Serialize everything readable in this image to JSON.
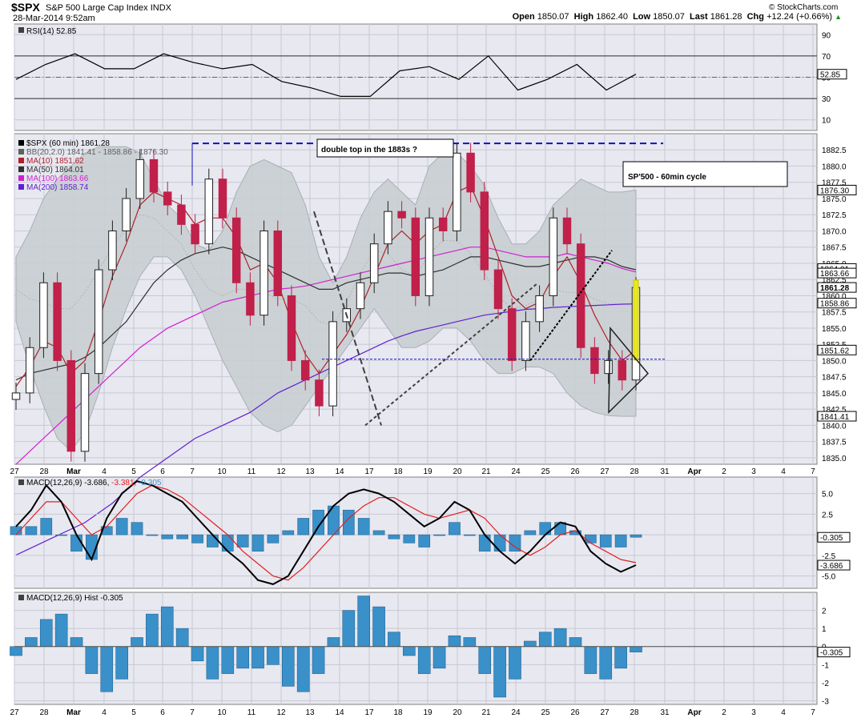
{
  "header": {
    "symbol": "$SPX",
    "name": "S&P 500 Large Cap Index",
    "exchange": "INDX",
    "timestamp": "28-Mar-2014 9:52am",
    "brand": "© StockCharts.com",
    "open_label": "Open",
    "open": "1850.07",
    "high_label": "High",
    "high": "1862.40",
    "low_label": "Low",
    "low": "1850.07",
    "last_label": "Last",
    "last": "1861.28",
    "chg_label": "Chg",
    "chg": "+12.24 (+0.66%)",
    "chg_icon": "triangle-up-icon"
  },
  "colors": {
    "panel_bg": "#e8e8f0",
    "bb_fill": "#c8ced0",
    "up": "#202020",
    "down": "#c0204a",
    "ma10": "#b0202a",
    "ma50": "#303030",
    "ma100": "#d020d0",
    "ma200": "#6020d0",
    "macd_hist": "#3a90c8",
    "signal": "#e02020",
    "marker": "#e8e820"
  },
  "chart_data": [
    {
      "type": "line",
      "panel": "rsi",
      "legend": "RSI(14) 52.85",
      "ylim": [
        0,
        100
      ],
      "yticks": [
        10,
        30,
        50,
        70,
        90
      ],
      "reference_lines": [
        30,
        70
      ],
      "last_value": "52.85",
      "x": [
        "Feb 27",
        "Feb 28",
        "Mar 3",
        "Mar 4",
        "Mar 5",
        "Mar 6",
        "Mar 7",
        "Mar 10",
        "Mar 11",
        "Mar 12",
        "Mar 13",
        "Mar 14",
        "Mar 17",
        "Mar 18",
        "Mar 19",
        "Mar 20",
        "Mar 21",
        "Mar 24",
        "Mar 25",
        "Mar 26",
        "Mar 27",
        "Mar 28"
      ],
      "values": [
        48,
        62,
        72,
        58,
        58,
        72,
        64,
        58,
        62,
        46,
        40,
        32,
        32,
        56,
        60,
        48,
        70,
        38,
        48,
        62,
        38,
        52.85
      ]
    },
    {
      "type": "candlestick",
      "panel": "price",
      "legend": [
        {
          "name": "$SPX (60 min) 1861.28",
          "icon": "candle-icon"
        },
        {
          "name": "BB(20,2.0) 1841.41 - 1858.86 - 1876.30",
          "icon": "bb-icon"
        },
        {
          "name": "MA(10) 1851.62",
          "icon": "line-icon"
        },
        {
          "name": "MA(50) 1864.01",
          "icon": "line-icon"
        },
        {
          "name": "MA(100) 1863.66",
          "icon": "line-icon"
        },
        {
          "name": "MA(200) 1858.74",
          "icon": "line-icon"
        }
      ],
      "ylim": [
        1834,
        1885
      ],
      "yticks": [
        "1835.0",
        "1837.5",
        "1840.0",
        "1842.5",
        "1845.0",
        "1847.5",
        "1850.0",
        "1852.5",
        "1855.0",
        "1857.5",
        "1860.0",
        "1862.5",
        "1865.0",
        "1867.5",
        "1870.0",
        "1872.5",
        "1875.0",
        "1877.5",
        "1880.0",
        "1882.5"
      ],
      "value_tags": [
        {
          "value": "1876.30",
          "y": 1876.3
        },
        {
          "value": "1864.01",
          "y": 1864.2
        },
        {
          "value": "1863.66",
          "y": 1863.5
        },
        {
          "value": "1861.28",
          "y": 1861.28
        },
        {
          "value": "1858.86",
          "y": 1858.86
        },
        {
          "value": "1851.62",
          "y": 1851.62
        },
        {
          "value": "1841.41",
          "y": 1841.41
        }
      ],
      "closes": [
        1845,
        1852,
        1862,
        1850,
        1836,
        1848,
        1864,
        1870,
        1875,
        1881,
        1876,
        1874,
        1871,
        1868,
        1878,
        1872,
        1862,
        1857,
        1870,
        1860,
        1850,
        1847,
        1843,
        1856,
        1858,
        1862,
        1868,
        1873,
        1872,
        1860,
        1872,
        1870,
        1882,
        1876,
        1864,
        1858,
        1850,
        1856,
        1860,
        1872,
        1868,
        1852,
        1848,
        1850,
        1847,
        1861.28
      ],
      "bb_upper": [
        1866,
        1870,
        1875,
        1878,
        1880,
        1882,
        1883,
        1883,
        1883,
        1882,
        1878,
        1874,
        1872,
        1868,
        1867,
        1870,
        1876,
        1880,
        1881,
        1880,
        1879,
        1874,
        1866,
        1862,
        1866,
        1872,
        1876,
        1878,
        1876,
        1874,
        1880,
        1882,
        1882,
        1880,
        1877,
        1872,
        1868,
        1868,
        1870,
        1874,
        1876,
        1878,
        1877,
        1876,
        1876,
        1876.3
      ],
      "bb_lower": [
        1856,
        1849,
        1843,
        1838,
        1836,
        1839,
        1845,
        1852,
        1858,
        1863,
        1866,
        1866,
        1864,
        1860,
        1855,
        1850,
        1846,
        1842,
        1840,
        1839,
        1840,
        1843,
        1846,
        1849,
        1852,
        1855,
        1858,
        1855,
        1852,
        1852,
        1853,
        1855,
        1855,
        1853,
        1850,
        1848,
        1848,
        1849,
        1849,
        1848,
        1845,
        1843,
        1842,
        1841.5,
        1841.4,
        1841.41
      ],
      "ma10": [
        1846,
        1849,
        1853,
        1852,
        1848,
        1850,
        1856,
        1863,
        1868,
        1874,
        1876,
        1875,
        1874,
        1871,
        1872,
        1872,
        1869,
        1864,
        1865,
        1862,
        1856,
        1851,
        1848,
        1851,
        1854,
        1858,
        1863,
        1868,
        1870,
        1868,
        1870,
        1871,
        1876,
        1877,
        1872,
        1866,
        1860,
        1858,
        1859,
        1863,
        1866,
        1862,
        1857,
        1853,
        1850,
        1851.62
      ],
      "ma50": [
        1847,
        1848,
        1848.5,
        1849,
        1849.5,
        1850.5,
        1852,
        1854,
        1856,
        1859,
        1862,
        1864,
        1865.5,
        1866.5,
        1867,
        1867.5,
        1867,
        1866,
        1865,
        1864,
        1863,
        1862,
        1861,
        1861,
        1862,
        1862.5,
        1863,
        1863.5,
        1863.5,
        1863,
        1863.5,
        1864,
        1865,
        1866,
        1866,
        1865.5,
        1865,
        1864.5,
        1864.5,
        1865,
        1865.5,
        1866,
        1866,
        1865.5,
        1864.5,
        1864.01
      ],
      "ma100": [
        1834,
        1836,
        1838,
        1840,
        1842,
        1844,
        1846,
        1848,
        1850,
        1852,
        1853.5,
        1855,
        1856,
        1857,
        1858,
        1859,
        1859.5,
        1860,
        1860.5,
        1861,
        1861.2,
        1861.5,
        1862,
        1862.5,
        1863,
        1863.5,
        1864,
        1864.5,
        1865,
        1865.5,
        1866,
        1866.5,
        1867,
        1867.5,
        1867.5,
        1867,
        1866.5,
        1866,
        1866,
        1866,
        1866.5,
        1866,
        1865.5,
        1865,
        1864.2,
        1863.66
      ],
      "ma200": [
        1820,
        1821,
        1822,
        1823,
        1824,
        1825,
        1826.5,
        1828,
        1830,
        1832,
        1833.5,
        1835,
        1836.5,
        1838,
        1839,
        1840,
        1841,
        1842,
        1843.5,
        1845,
        1846,
        1847,
        1848,
        1849,
        1850,
        1851,
        1852,
        1853,
        1853.8,
        1854.5,
        1855,
        1855.5,
        1856,
        1856.5,
        1857,
        1857.3,
        1857.6,
        1857.9,
        1858,
        1858.2,
        1858.3,
        1858.4,
        1858.5,
        1858.6,
        1858.7,
        1858.74
      ],
      "annotations": {
        "double_top_label": "double top in the 1883s ?",
        "cycle_label": "SP'500 - 60min cycle",
        "double_top_level": 1883.5,
        "support_level": 1850.2
      }
    },
    {
      "type": "line",
      "panel": "macd",
      "legend": "MACD(12,26,9) -3.686, -3.381, -0.305",
      "legend_macd": "MACD(12,26,9)",
      "legend_values": [
        "-3.686",
        "-3.381",
        "-0.305"
      ],
      "ylim": [
        -6.5,
        7
      ],
      "yticks": [
        "-5.0",
        "-2.5",
        "0",
        "2.5",
        "5.0"
      ],
      "value_tags": [
        {
          "value": "-0.305",
          "y": -0.305
        },
        {
          "value": "-3.686",
          "y": -3.686
        }
      ],
      "macd": [
        1,
        3,
        6,
        4,
        0,
        -3,
        2,
        5,
        6.5,
        6,
        5,
        4,
        2,
        0,
        -2,
        -3.5,
        -5.5,
        -6,
        -5,
        -2,
        1,
        3.5,
        5,
        5.5,
        5,
        4,
        2.5,
        1,
        2,
        4,
        3,
        0,
        -2,
        -3.5,
        -2,
        0,
        1.5,
        1,
        -2,
        -3.5,
        -4.5,
        -3.686
      ],
      "signal": [
        0,
        2,
        4,
        4,
        2,
        0,
        1,
        3,
        5,
        6,
        5.5,
        4.5,
        3,
        1.5,
        0,
        -2,
        -3.5,
        -5,
        -5.5,
        -4,
        -2,
        0,
        2,
        3.5,
        4.5,
        4.5,
        3.5,
        2.5,
        2,
        2.5,
        3,
        2,
        0,
        -1.5,
        -2.5,
        -1.5,
        0,
        0.5,
        -1,
        -2,
        -3,
        -3.381
      ]
    },
    {
      "type": "bar",
      "panel": "macd-hist",
      "legend": "MACD(12,26,9) Hist -0.305",
      "ylim": [
        -3.2,
        3
      ],
      "yticks": [
        "-3",
        "-2",
        "-1",
        "0",
        "1",
        "2"
      ],
      "value_tags": [
        {
          "value": "-0.305",
          "y": -0.305
        }
      ],
      "values": [
        -0.5,
        0.5,
        1.5,
        1.8,
        0.5,
        -1.5,
        -2.5,
        -1.8,
        0.5,
        1.8,
        2.2,
        1.0,
        -0.8,
        -1.8,
        -1.5,
        -1.2,
        -1.2,
        -1.0,
        -2.2,
        -2.5,
        -1.5,
        0.5,
        2.0,
        2.8,
        2.2,
        0.8,
        -0.5,
        -1.5,
        -1.2,
        0.6,
        0.5,
        -1.5,
        -2.8,
        -1.8,
        0.3,
        0.8,
        1.0,
        0.5,
        -1.5,
        -1.8,
        -1.2,
        -0.305
      ]
    }
  ],
  "x_axis": {
    "labels": [
      "27",
      "28",
      "Mar",
      "4",
      "5",
      "6",
      "7",
      "10",
      "11",
      "12",
      "13",
      "14",
      "17",
      "18",
      "19",
      "20",
      "21",
      "24",
      "25",
      "26",
      "27",
      "28",
      "31",
      "Apr",
      "2",
      "3",
      "4",
      "7"
    ],
    "bold_labels": [
      "Mar",
      "Apr"
    ]
  }
}
